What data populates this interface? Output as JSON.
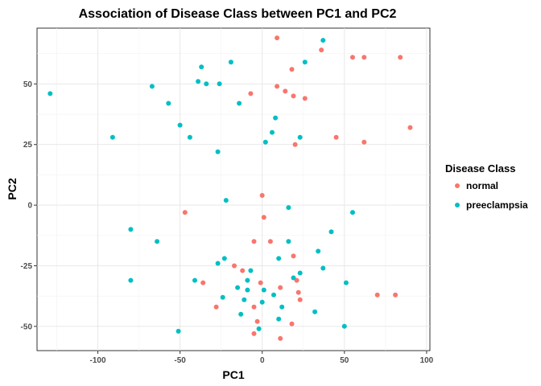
{
  "chart_data": {
    "type": "scatter",
    "title": "Association of Disease Class between PC1 and PC2",
    "xlabel": "PC1",
    "ylabel": "PC2",
    "xlim": [
      -137,
      102
    ],
    "ylim": [
      -60,
      73
    ],
    "x_ticks": [
      -100,
      -50,
      0,
      50,
      100
    ],
    "y_ticks": [
      -50,
      -25,
      0,
      25,
      50
    ],
    "x_tick_labels": [
      "-100",
      "-50",
      "0",
      "50",
      "100"
    ],
    "y_tick_labels": [
      "-50",
      "-25",
      "0",
      "25",
      "50"
    ],
    "grid": true,
    "legend": {
      "title": "Disease Class",
      "position": "right"
    },
    "series": [
      {
        "name": "normal",
        "color": "#F8766D",
        "points": [
          [
            9,
            69
          ],
          [
            36,
            64
          ],
          [
            18,
            56
          ],
          [
            55,
            61
          ],
          [
            62,
            61
          ],
          [
            84,
            61
          ],
          [
            9,
            49
          ],
          [
            14,
            47
          ],
          [
            19,
            45
          ],
          [
            26,
            44
          ],
          [
            -7,
            46
          ],
          [
            90,
            32
          ],
          [
            45,
            28
          ],
          [
            62,
            26
          ],
          [
            20,
            25
          ],
          [
            0,
            4
          ],
          [
            -47,
            -3
          ],
          [
            1,
            -5
          ],
          [
            -5,
            -15
          ],
          [
            5,
            -15
          ],
          [
            19,
            -21
          ],
          [
            -17,
            -25
          ],
          [
            -12,
            -27
          ],
          [
            -36,
            -32
          ],
          [
            -1,
            -32
          ],
          [
            11,
            -34
          ],
          [
            21,
            -31
          ],
          [
            22,
            -36
          ],
          [
            23,
            -39
          ],
          [
            70,
            -37
          ],
          [
            81,
            -37
          ],
          [
            -28,
            -42
          ],
          [
            -5,
            -42
          ],
          [
            -3,
            -48
          ],
          [
            -5,
            -53
          ],
          [
            11,
            -55
          ],
          [
            18,
            -49
          ]
        ]
      },
      {
        "name": "preeclampsia",
        "color": "#00BFC4",
        "points": [
          [
            -129,
            46
          ],
          [
            37,
            68
          ],
          [
            -19,
            59
          ],
          [
            -37,
            57
          ],
          [
            26,
            59
          ],
          [
            -67,
            49
          ],
          [
            -39,
            51
          ],
          [
            -34,
            50
          ],
          [
            -26,
            50
          ],
          [
            -57,
            42
          ],
          [
            -14,
            42
          ],
          [
            8,
            36
          ],
          [
            -50,
            33
          ],
          [
            -44,
            28
          ],
          [
            -91,
            28
          ],
          [
            6,
            30
          ],
          [
            -27,
            22
          ],
          [
            23,
            28
          ],
          [
            2,
            26
          ],
          [
            -22,
            2
          ],
          [
            16,
            -1
          ],
          [
            55,
            -3
          ],
          [
            -80,
            -10
          ],
          [
            -64,
            -15
          ],
          [
            42,
            -11
          ],
          [
            16,
            -15
          ],
          [
            34,
            -19
          ],
          [
            -23,
            -22
          ],
          [
            -27,
            -24
          ],
          [
            10,
            -22
          ],
          [
            37,
            -26
          ],
          [
            23,
            -28
          ],
          [
            -7,
            -27
          ],
          [
            -9,
            -31
          ],
          [
            -80,
            -31
          ],
          [
            -41,
            -31
          ],
          [
            -15,
            -34
          ],
          [
            -9,
            -35
          ],
          [
            1,
            -35
          ],
          [
            7,
            -37
          ],
          [
            19,
            -30
          ],
          [
            51,
            -32
          ],
          [
            -24,
            -38
          ],
          [
            -11,
            -39
          ],
          [
            0,
            -40
          ],
          [
            12,
            -42
          ],
          [
            32,
            -44
          ],
          [
            -13,
            -45
          ],
          [
            10,
            -47
          ],
          [
            -2,
            -51
          ],
          [
            -51,
            -52
          ],
          [
            50,
            -50
          ]
        ]
      }
    ]
  }
}
